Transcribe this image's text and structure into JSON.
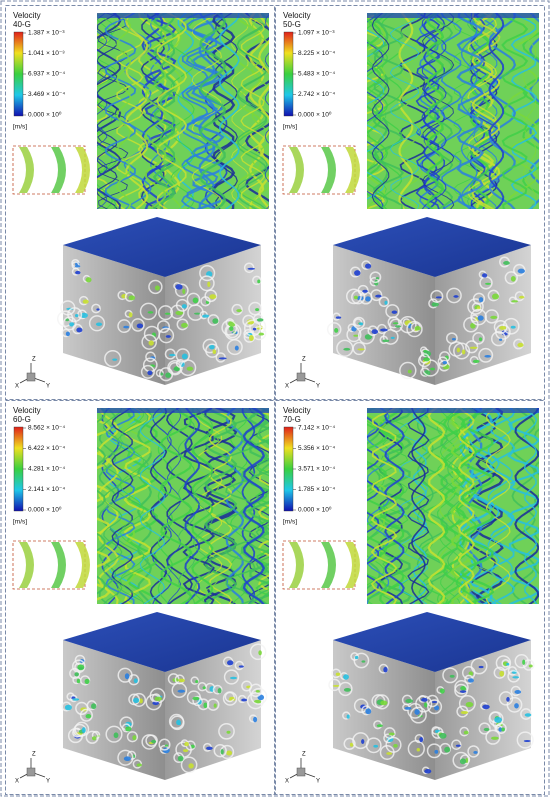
{
  "panels": [
    {
      "title": "Velocity",
      "label": "40-G",
      "ticks": [
        "1.387 × 10⁻³",
        "1.041 × 10⁻³",
        "6.937 × 10⁻⁴",
        "3.469 × 10⁻⁴",
        "0.000 × 10⁰"
      ],
      "unit": "[m/s]",
      "axes": [
        "Z",
        "X",
        "Y"
      ]
    },
    {
      "title": "Velocity",
      "label": "50-G",
      "ticks": [
        "1.097 × 10⁻³",
        "8.225 × 10⁻⁴",
        "5.483 × 10⁻⁴",
        "2.742 × 10⁻⁴",
        "0.000 × 10⁰"
      ],
      "unit": "[m/s]",
      "axes": [
        "Z",
        "X",
        "Y"
      ]
    },
    {
      "title": "Velocity",
      "label": "60-G",
      "ticks": [
        "8.562 × 10⁻⁴",
        "6.422 × 10⁻⁴",
        "4.281 × 10⁻⁴",
        "2.141 × 10⁻⁴",
        "0.000 × 10⁰"
      ],
      "unit": "[m/s]",
      "axes": [
        "Z",
        "X",
        "Y"
      ]
    },
    {
      "title": "Velocity",
      "label": "70-G",
      "ticks": [
        "7.142 × 10⁻⁴",
        "5.356 × 10⁻⁴",
        "3.571 × 10⁻⁴",
        "1.785 × 10⁻⁴",
        "0.000 × 10⁰"
      ],
      "unit": "[m/s]",
      "axes": [
        "Z",
        "X",
        "Y"
      ]
    }
  ]
}
